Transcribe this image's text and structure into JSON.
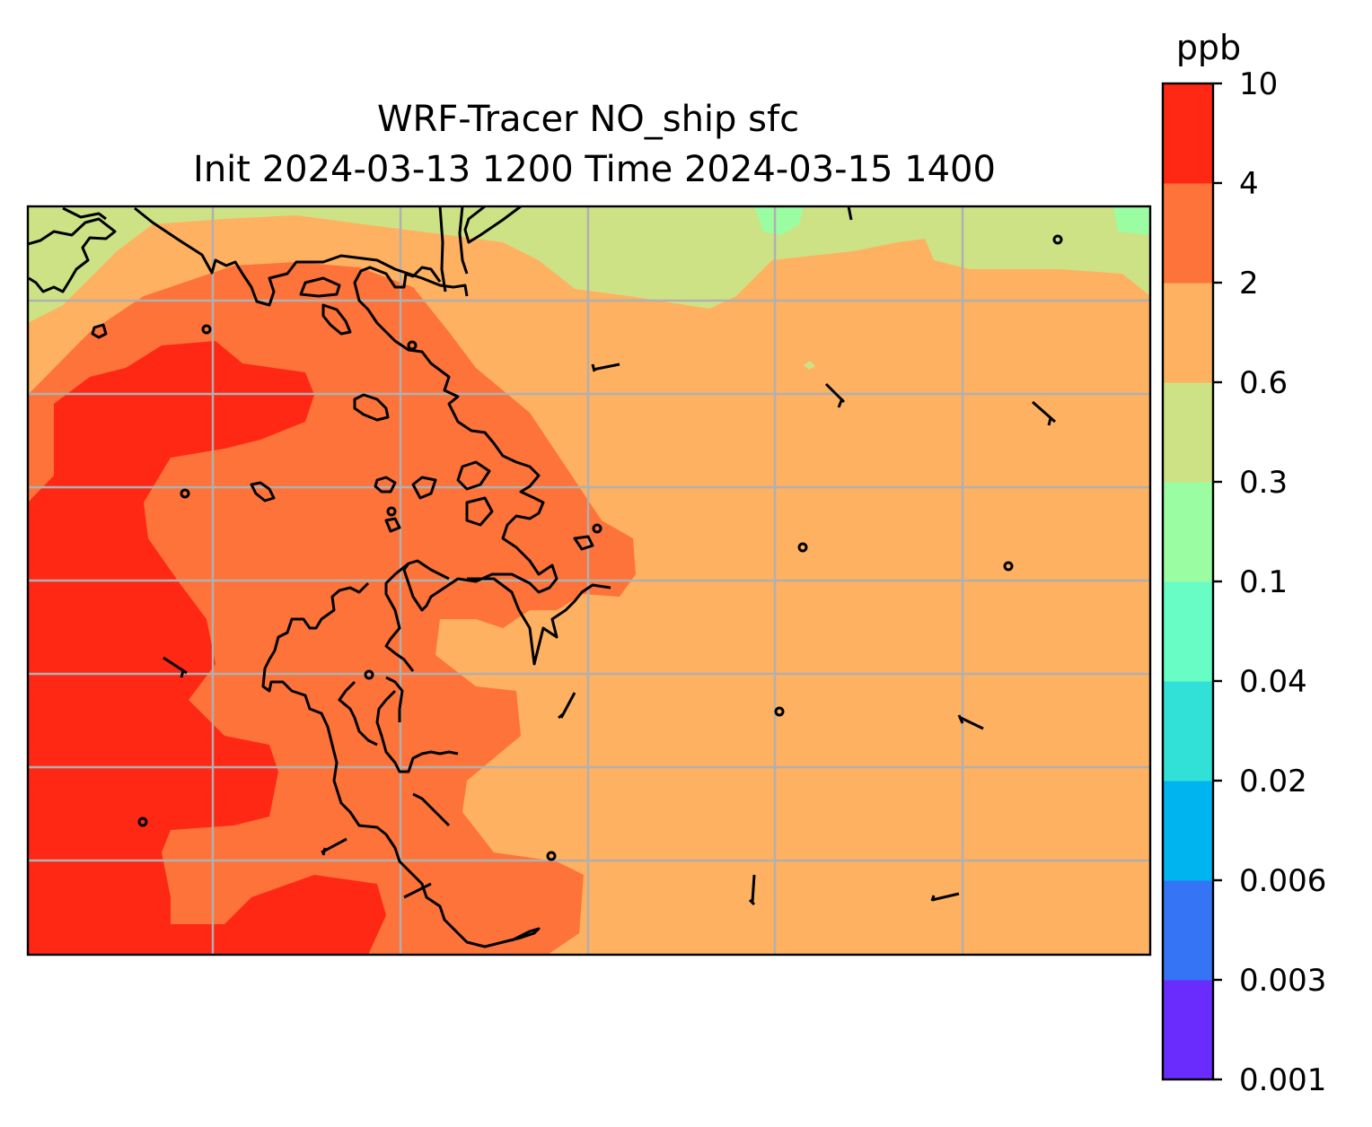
{
  "title": {
    "line1": "WRF-Tracer NO_ship sfc",
    "line2": "Init 2024-03-13 1200 Time 2024-03-15 1400"
  },
  "colorbar": {
    "unit": "ppb",
    "ticks": [
      "0.001",
      "0.003",
      "0.006",
      "0.02",
      "0.04",
      "0.1",
      "0.3",
      "0.6",
      "2",
      "4",
      "10"
    ],
    "colors": [
      "#6a2cfc",
      "#3574f4",
      "#00b4ef",
      "#31e0d6",
      "#68fdc5",
      "#9bfda2",
      "#cde285",
      "#feb160",
      "#fe7339",
      "#fe2815"
    ]
  },
  "map": {
    "gridlines": true,
    "shading": {
      "0.3-0.6": "#cde285",
      "0.1-0.3": "#9bfda2",
      "0.6-2": "#feb160",
      "2-4": "#fe7339",
      "4-10": "#fe2815"
    },
    "icons": [
      "coastline",
      "island",
      "wind-barb"
    ]
  }
}
